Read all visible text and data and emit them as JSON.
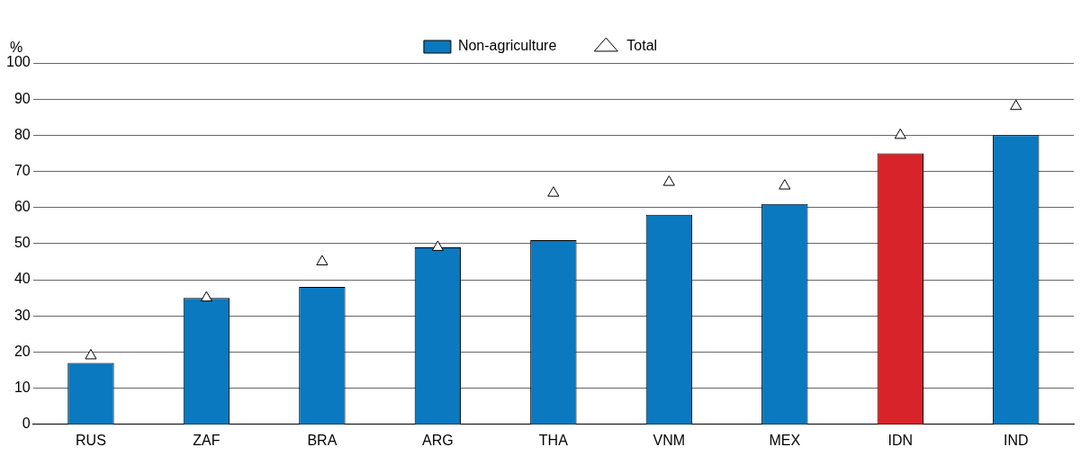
{
  "chart_data": {
    "type": "bar",
    "ylabel": "%",
    "categories": [
      "RUS",
      "ZAF",
      "BRA",
      "ARG",
      "THA",
      "VNM",
      "MEX",
      "IDN",
      "IND"
    ],
    "series": [
      {
        "name": "Non-agriculture",
        "color": "#0a79bf",
        "colors": [
          "#0a79bf",
          "#0a79bf",
          "#0a79bf",
          "#0a79bf",
          "#0a79bf",
          "#0a79bf",
          "#0a79bf",
          "#d9232a",
          "#0a79bf"
        ],
        "values": [
          17,
          35,
          38,
          49,
          51,
          58,
          61,
          75,
          80
        ]
      },
      {
        "name": "Total",
        "type": "scatter",
        "color": "#000000",
        "marker": "triangle",
        "x": [
          "RUS",
          "ZAF",
          "BRA",
          "ARG",
          "THA",
          "VNM",
          "MEX",
          "IDN",
          "IND"
        ],
        "values": [
          19,
          35,
          45,
          49,
          64,
          67,
          66,
          80,
          88
        ]
      }
    ],
    "ylim": [
      0,
      100
    ],
    "yticks": [
      0,
      10,
      20,
      30,
      40,
      50,
      60,
      70,
      80,
      90,
      100
    ],
    "grid": "y",
    "legend": "top"
  }
}
